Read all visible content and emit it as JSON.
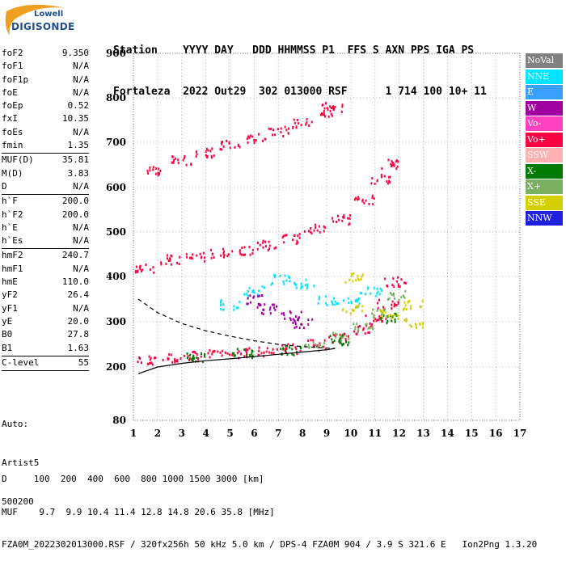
{
  "logo": {
    "brand": "Lowell",
    "product": "DIGISONDE"
  },
  "header": {
    "line1": "Station    YYYY DAY   DDD HHMMSS P1  FFS S AXN PPS IGA PS",
    "line2": "Fortaleza  2022 Out29  302 013000 RSF      1 714 100 10+ 11"
  },
  "params": [
    {
      "name": "foF2",
      "value": "9.350"
    },
    {
      "name": "foF1",
      "value": "N/A"
    },
    {
      "name": "foF1p",
      "value": "N/A"
    },
    {
      "name": "foE",
      "value": "N/A"
    },
    {
      "name": "foEp",
      "value": "0.52"
    },
    {
      "name": "fxI",
      "value": "10.35"
    },
    {
      "name": "foEs",
      "value": "N/A"
    },
    {
      "name": "fmin",
      "value": "1.35"
    },
    {
      "sep": true
    },
    {
      "name": "MUF(D)",
      "value": "35.81"
    },
    {
      "name": "M(D)",
      "value": "3.83"
    },
    {
      "name": "D",
      "value": "N/A"
    },
    {
      "sep": true
    },
    {
      "name": "h`F",
      "value": "200.0"
    },
    {
      "name": "h`F2",
      "value": "200.0"
    },
    {
      "name": "h`E",
      "value": "N/A"
    },
    {
      "name": "h`Es",
      "value": "N/A"
    },
    {
      "sep": true
    },
    {
      "name": "hmF2",
      "value": "240.7"
    },
    {
      "name": "hmF1",
      "value": "N/A"
    },
    {
      "name": "hmE",
      "value": "110.0"
    },
    {
      "name": "yF2",
      "value": "26.4"
    },
    {
      "name": "yF1",
      "value": "N/A"
    },
    {
      "name": "yE",
      "value": "20.0"
    },
    {
      "name": "B0",
      "value": "27.8"
    },
    {
      "name": "B1",
      "value": "1.63"
    },
    {
      "sep": true
    },
    {
      "name": "C-level",
      "value": "55"
    },
    {
      "sep": true
    }
  ],
  "auto": {
    "line1": "Auto:",
    "line2": "Artist5",
    "line3": "500200"
  },
  "legend": [
    {
      "label": "NoVal",
      "color": "#808080"
    },
    {
      "label": "NNE",
      "color": "#00e5ff"
    },
    {
      "label": "E",
      "color": "#3aa0ff"
    },
    {
      "label": "W",
      "color": "#a000a0"
    },
    {
      "label": "Vo-",
      "color": "#ff40c0"
    },
    {
      "label": "Vo+",
      "color": "#ff0040"
    },
    {
      "label": "SSW",
      "color": "#ffb0b0"
    },
    {
      "label": "X-",
      "color": "#007a00"
    },
    {
      "label": "X+",
      "color": "#7ab060"
    },
    {
      "label": "SSE",
      "color": "#d4d000"
    },
    {
      "label": "NNW",
      "color": "#2020e0"
    }
  ],
  "footer": {
    "line1": "D     100  200  400  600  800 1000 1500 3000 [km]",
    "line2": "MUF    9.7  9.9 10.4 11.4 12.8 14.8 20.6 35.8 [MHz]",
    "line3": "FZA0M_2022302013000.RSF / 320fx256h 50 kHz 5.0 km / DPS-4 FZA0M 904 / 3.9 S 321.6 E   Ion2Png 1.3.20"
  },
  "chart_data": {
    "type": "scatter",
    "xlim": [
      1,
      17
    ],
    "ylim": [
      80,
      900
    ],
    "x_ticks": [
      1,
      2,
      3,
      4,
      5,
      6,
      7,
      8,
      9,
      10,
      11,
      12,
      13,
      14,
      15,
      16,
      17
    ],
    "y_ticks": [
      80,
      200,
      300,
      400,
      500,
      600,
      700,
      800,
      900
    ],
    "grid": true,
    "series": [
      {
        "name": "Vo+",
        "color": "#ff0040",
        "points": [
          [
            1.5,
            215
          ],
          [
            2.5,
            222
          ],
          [
            3.5,
            226
          ],
          [
            4.5,
            230
          ],
          [
            5.5,
            233
          ],
          [
            6.5,
            237
          ],
          [
            7.5,
            242
          ],
          [
            8.5,
            252
          ],
          [
            9.5,
            265
          ],
          [
            10.5,
            285
          ],
          [
            11.0,
            305
          ],
          [
            11.5,
            340
          ],
          [
            11.8,
            390
          ]
        ]
      },
      {
        "name": "Vo+ (2nd hop)",
        "color": "#ff0040",
        "points": [
          [
            1.5,
            420
          ],
          [
            2.5,
            440
          ],
          [
            3.5,
            445
          ],
          [
            4.5,
            455
          ],
          [
            5.5,
            462
          ],
          [
            6.5,
            472
          ],
          [
            7.5,
            487
          ],
          [
            8.5,
            508
          ],
          [
            9.5,
            530
          ],
          [
            10.5,
            575
          ],
          [
            11.2,
            620
          ],
          [
            11.5,
            655
          ]
        ]
      },
      {
        "name": "Vo+ (3rd hop)",
        "color": "#ff0040",
        "points": [
          [
            2.0,
            640
          ],
          [
            3.0,
            662
          ],
          [
            4.0,
            680
          ],
          [
            5.0,
            697
          ],
          [
            6.0,
            712
          ],
          [
            7.0,
            727
          ],
          [
            8.0,
            745
          ],
          [
            8.8,
            770
          ],
          [
            9.2,
            780
          ]
        ]
      },
      {
        "name": "X+",
        "color": "#7ab060",
        "points": [
          [
            8.5,
            248
          ],
          [
            9.5,
            268
          ],
          [
            10.5,
            290
          ],
          [
            11.3,
            320
          ],
          [
            11.8,
            360
          ]
        ]
      },
      {
        "name": "X-",
        "color": "#007a00",
        "points": [
          [
            3.5,
            224
          ],
          [
            5.5,
            232
          ],
          [
            7.5,
            240
          ],
          [
            9.5,
            262
          ],
          [
            11.5,
            310
          ]
        ]
      },
      {
        "name": "NNE",
        "color": "#00e5ff",
        "points": [
          [
            5.0,
            340
          ],
          [
            6.0,
            370
          ],
          [
            7.0,
            395
          ],
          [
            8.0,
            385
          ],
          [
            9.0,
            350
          ],
          [
            10.0,
            345
          ],
          [
            10.8,
            370
          ]
        ]
      },
      {
        "name": "SSE",
        "color": "#d4d000",
        "points": [
          [
            10.0,
            330
          ],
          [
            10.2,
            400
          ],
          [
            11.5,
            320
          ],
          [
            12.5,
            340
          ],
          [
            12.6,
            300
          ]
        ]
      },
      {
        "name": "W",
        "color": "#a000a0",
        "points": [
          [
            6.0,
            350
          ],
          [
            6.5,
            330
          ],
          [
            7.5,
            315
          ],
          [
            8.0,
            300
          ]
        ]
      },
      {
        "name": "Electron density profile",
        "color": "#000000",
        "points": [
          [
            1.2,
            185
          ],
          [
            2.0,
            200
          ],
          [
            3.0,
            208
          ],
          [
            4.0,
            214
          ],
          [
            5.0,
            218
          ],
          [
            6.0,
            223
          ],
          [
            7.0,
            228
          ],
          [
            8.0,
            233
          ],
          [
            9.0,
            238
          ],
          [
            9.35,
            241
          ]
        ]
      },
      {
        "name": "Extrapolated profile",
        "color": "#000000",
        "points": [
          [
            1.2,
            350
          ],
          [
            2.0,
            320
          ],
          [
            3.0,
            296
          ],
          [
            4.0,
            280
          ],
          [
            5.0,
            268
          ],
          [
            6.0,
            258
          ],
          [
            7.0,
            250
          ],
          [
            8.0,
            245
          ],
          [
            9.0,
            242
          ],
          [
            9.35,
            241
          ]
        ]
      }
    ]
  }
}
